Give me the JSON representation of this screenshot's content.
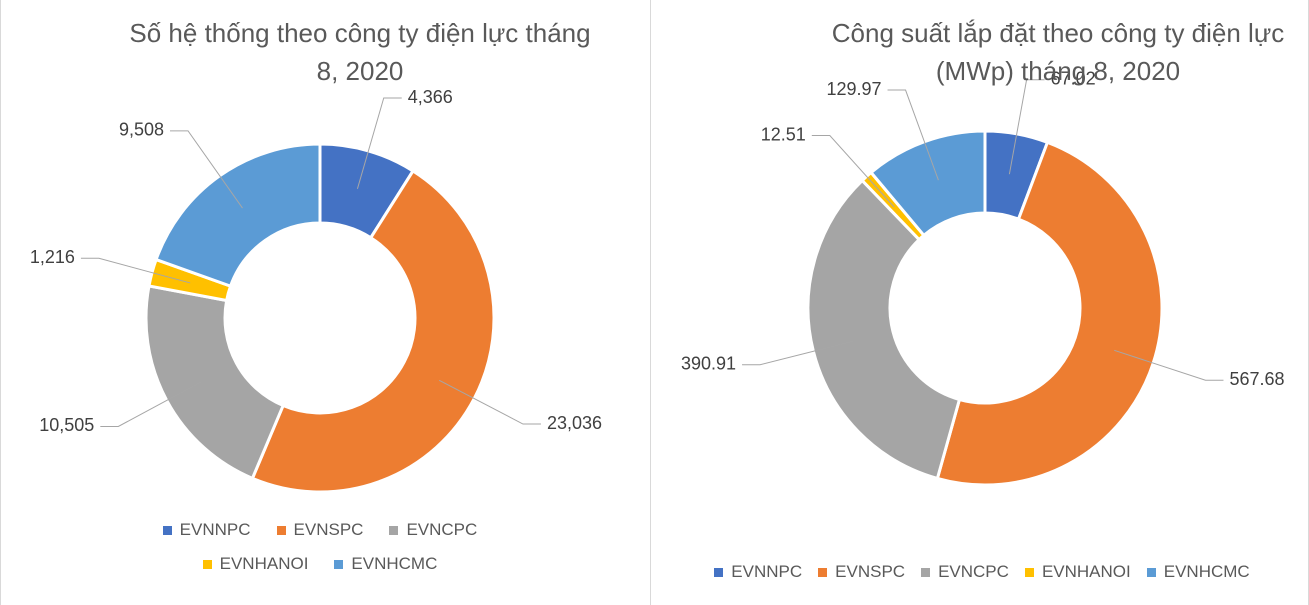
{
  "chart_data": [
    {
      "type": "donut",
      "title": "Số hệ thống theo công ty điện lực tháng 8, 2020",
      "categories": [
        "EVNNPC",
        "EVNSPC",
        "EVNCPC",
        "EVNHANOI",
        "EVNHCMC"
      ],
      "values": [
        4366,
        23036,
        10505,
        1216,
        9508
      ],
      "value_labels": [
        "4,366",
        "23,036",
        "10,505",
        "1,216",
        "9,508"
      ],
      "colors": [
        "#4472c4",
        "#ed7d31",
        "#a5a5a5",
        "#ffc000",
        "#5b9bd5"
      ],
      "legend": "bottom"
    },
    {
      "type": "donut",
      "title": "Công suất lắp đặt theo công ty điện lực (MWp) tháng 8, 2020",
      "categories": [
        "EVNNPC",
        "EVNSPC",
        "EVNCPC",
        "EVNHANOI",
        "EVNHCMC"
      ],
      "values": [
        67.02,
        567.68,
        390.91,
        12.51,
        129.97
      ],
      "colors": [
        "#4472c4",
        "#ed7d31",
        "#a5a5a5",
        "#ffc000",
        "#5b9bd5"
      ],
      "legend": "bottom"
    }
  ]
}
